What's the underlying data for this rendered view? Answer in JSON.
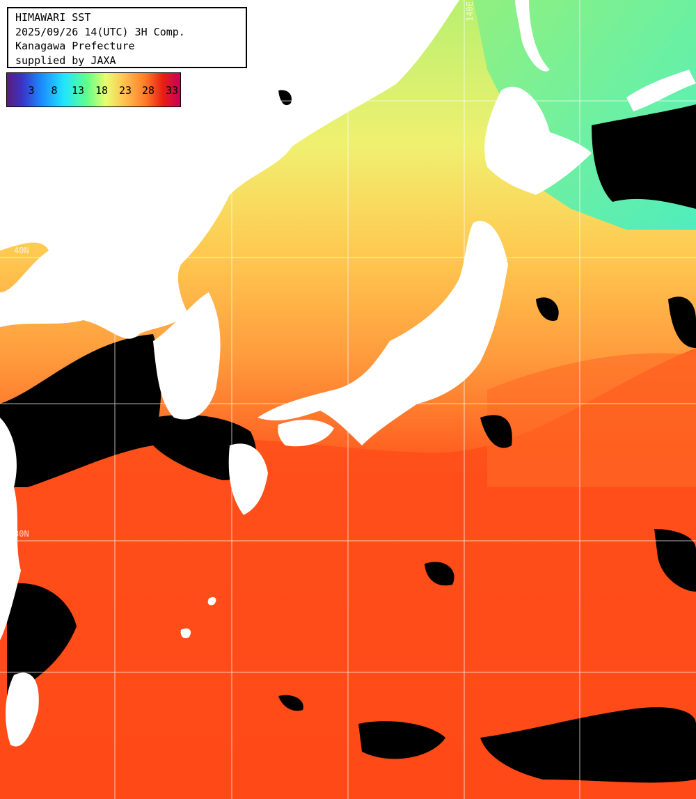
{
  "info": {
    "lines": [
      "HIMAWARI SST",
      "2025/09/26 14(UTC) 3H Comp.",
      "Kanagawa Prefecture",
      "supplied by JAXA"
    ]
  },
  "legend": {
    "ticks": [
      "3",
      "8",
      "13",
      "18",
      "23",
      "28",
      "33"
    ]
  },
  "grid_labels": {
    "lon": "140E",
    "lat1": "40N",
    "lat2": "30N"
  },
  "colors": {
    "land": "#ffffff",
    "cloud": "#000000",
    "grid": "#ffffff",
    "sst_cold": "#3cf0c8",
    "sst_mid": "#f0f070",
    "sst_warm": "#ff8c32",
    "sst_hot": "#ff3c14"
  }
}
